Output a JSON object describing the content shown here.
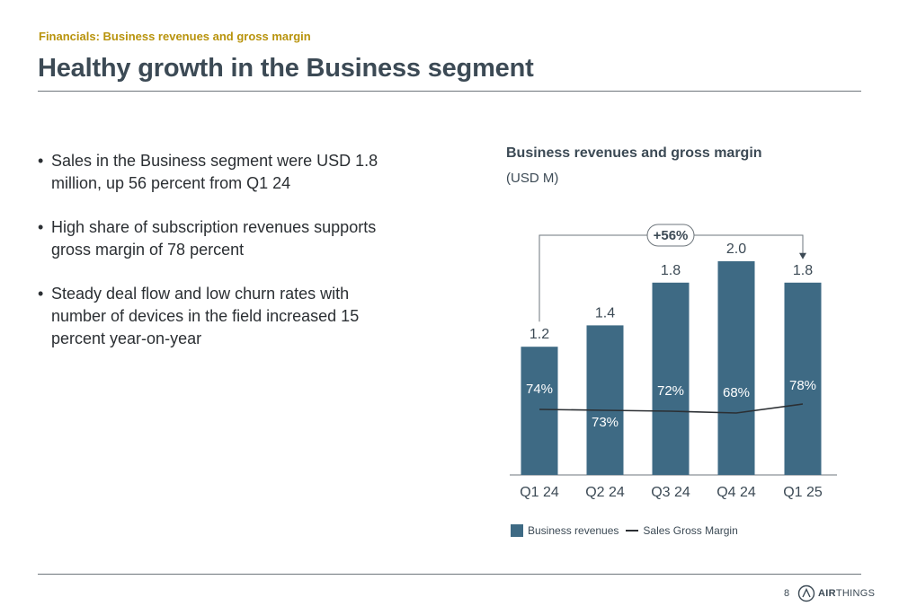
{
  "header": {
    "section_label": "Financials: Business revenues and gross margin",
    "title": "Healthy growth in the Business segment"
  },
  "bullets": [
    "Sales in the Business segment were USD 1.8 million, up 56 percent from Q1 24",
    "High share of subscription revenues supports gross margin of 78 percent",
    "Steady deal flow and low churn rates with number of devices in the field increased 15 percent year-on-year"
  ],
  "chart_data": {
    "type": "bar",
    "title": "Business revenues and gross margin",
    "subtitle": "(USD M)",
    "categories": [
      "Q1 24",
      "Q2 24",
      "Q3 24",
      "Q4 24",
      "Q1 25"
    ],
    "series": [
      {
        "name": "Business revenues",
        "type": "bar",
        "values": [
          1.2,
          1.4,
          1.8,
          2.0,
          1.8
        ],
        "labels": [
          "1.2",
          "1.4",
          "1.8",
          "2.0",
          "1.8"
        ],
        "color": "#3e6a84"
      },
      {
        "name": "Sales Gross Margin",
        "type": "line",
        "values": [
          74,
          73,
          72,
          68,
          78
        ],
        "labels": [
          "74%",
          "73%",
          "72%",
          "68%",
          "78%"
        ],
        "color": "#2b2f33"
      }
    ],
    "annotation": {
      "text": "+56%",
      "from": "Q1 24",
      "to": "Q1 25"
    },
    "grid": false,
    "legend_position": "bottom-left"
  },
  "legend": {
    "bar_label": "Business revenues",
    "line_label": "Sales Gross Margin"
  },
  "footer": {
    "page_number": "8",
    "logo_text_bold": "AIR",
    "logo_text_light": "THINGS"
  }
}
